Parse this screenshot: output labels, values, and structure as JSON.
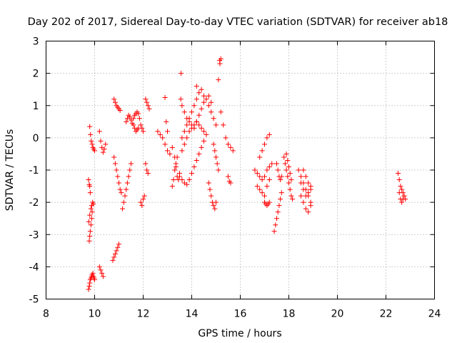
{
  "chart_data": {
    "type": "scatter",
    "title": "Day 202 of 2017, Sidereal Day-to-day VTEC variation (SDTVAR) for receiver ab18",
    "xlabel": "GPS time / hours",
    "ylabel": "SDTVAR / TECUs",
    "xlim": [
      8,
      24
    ],
    "ylim": [
      -5,
      3
    ],
    "x_ticks": [
      8,
      10,
      12,
      14,
      16,
      18,
      20,
      22,
      24
    ],
    "y_ticks": [
      -5,
      -4,
      -3,
      -2,
      -1,
      0,
      1,
      2,
      3
    ],
    "x_tick_labels": [
      "8",
      "10",
      "12",
      "14",
      "16",
      "18",
      "20",
      "22",
      "24"
    ],
    "y_tick_labels": [
      "-5",
      "-4",
      "-3",
      "-2",
      "-1",
      "0",
      "1",
      "2",
      "3"
    ],
    "grid": true,
    "marker": "+",
    "color": "#ff0000",
    "series": [
      {
        "name": "SDTVAR",
        "x": [
          9.75,
          9.78,
          9.8,
          9.82,
          9.85,
          9.88,
          9.9,
          9.93,
          9.95,
          9.98,
          10.0,
          9.78,
          9.8,
          9.82,
          9.85,
          9.88,
          9.9,
          9.76,
          9.8,
          9.85,
          9.88,
          9.92,
          9.95,
          9.75,
          9.78,
          9.8,
          9.82,
          9.8,
          9.83,
          9.86,
          9.9,
          9.93,
          9.96,
          10.0,
          10.2,
          10.25,
          10.3,
          10.35,
          10.2,
          10.25,
          10.3,
          10.35,
          10.4,
          10.45,
          10.75,
          10.8,
          10.85,
          10.9,
          10.95,
          11.0,
          10.8,
          10.85,
          10.9,
          10.95,
          11.0,
          11.05,
          10.8,
          10.85,
          10.9,
          10.95,
          11.0,
          11.05,
          11.1,
          11.15,
          11.2,
          11.25,
          11.3,
          11.35,
          11.4,
          11.45,
          11.5,
          11.3,
          11.35,
          11.4,
          11.45,
          11.5,
          11.55,
          11.6,
          11.65,
          11.7,
          11.75,
          11.8,
          11.6,
          11.65,
          11.7,
          11.75,
          11.8,
          11.85,
          11.9,
          11.95,
          12.0,
          11.9,
          11.95,
          12.0,
          12.05,
          12.1,
          12.15,
          12.2,
          12.25,
          12.1,
          12.15,
          12.2,
          12.6,
          12.7,
          12.8,
          12.9,
          13.0,
          13.1,
          12.9,
          12.95,
          13.0,
          13.2,
          13.3,
          13.35,
          13.4,
          13.45,
          13.5,
          13.2,
          13.25,
          13.3,
          13.35,
          13.4,
          13.55,
          13.6,
          13.7,
          13.8,
          13.9,
          14.0,
          14.1,
          14.2,
          14.3,
          14.4,
          14.5,
          14.6,
          14.7,
          14.8,
          14.9,
          15.0,
          13.6,
          13.7,
          13.8,
          13.9,
          14.0,
          14.1,
          14.2,
          14.3,
          14.4,
          14.5,
          13.6,
          13.7,
          13.8,
          13.9,
          14.0,
          14.1,
          14.2,
          14.3,
          14.4,
          14.5,
          14.6,
          13.5,
          13.6,
          13.7,
          13.8,
          13.9,
          14.0,
          14.1,
          14.2,
          14.3,
          14.4,
          14.5,
          13.56,
          14.2,
          14.7,
          14.8,
          15.1,
          15.15,
          15.2,
          15.16,
          14.7,
          14.75,
          14.8,
          14.85,
          14.9,
          14.95,
          15.0,
          14.9,
          14.95,
          15.0,
          15.05,
          15.1,
          15.2,
          15.3,
          15.4,
          15.5,
          15.6,
          15.7,
          15.5,
          15.55,
          15.6,
          16.6,
          16.7,
          16.8,
          16.9,
          17.0,
          17.1,
          17.2,
          17.3,
          16.7,
          16.8,
          16.9,
          17.0,
          17.1,
          17.2,
          16.8,
          16.9,
          17.0,
          17.1,
          17.2,
          17.0,
          17.05,
          17.1,
          17.15,
          17.2,
          17.4,
          17.45,
          17.5,
          17.55,
          17.6,
          17.65,
          17.7,
          17.5,
          17.55,
          17.6,
          17.65,
          17.7,
          17.8,
          17.85,
          17.9,
          17.95,
          18.0,
          18.05,
          18.1,
          18.15,
          17.9,
          17.95,
          18.0,
          18.05,
          18.1,
          18.4,
          18.5,
          18.6,
          18.7,
          18.8,
          18.9,
          18.5,
          18.6,
          18.7,
          18.8,
          18.9,
          18.5,
          18.6,
          18.7,
          18.8,
          18.9,
          18.6,
          18.7,
          18.8,
          18.9,
          22.5,
          22.55,
          22.6,
          22.65,
          22.7,
          22.75,
          22.8,
          22.55,
          22.6,
          22.65,
          22.7,
          22.75
        ],
        "y": [
          -4.7,
          -4.6,
          -4.5,
          -4.4,
          -4.35,
          -4.3,
          -4.25,
          -4.2,
          -4.3,
          -4.35,
          -4.4,
          -3.2,
          -3.05,
          -2.9,
          -2.7,
          -2.5,
          -2.3,
          -2.6,
          -2.4,
          -2.2,
          -2.1,
          -2.0,
          -2.05,
          -1.3,
          -1.45,
          -1.5,
          -1.7,
          0.35,
          0.1,
          -0.1,
          -0.2,
          -0.3,
          -0.35,
          -0.4,
          -4.0,
          -4.1,
          -4.2,
          -4.3,
          0.2,
          -0.1,
          -0.3,
          -0.45,
          -0.35,
          -0.2,
          -3.8,
          -3.7,
          -3.6,
          -3.5,
          -3.4,
          -3.3,
          1.2,
          1.1,
          1.0,
          0.95,
          0.9,
          0.85,
          -0.6,
          -0.8,
          -1.0,
          -1.2,
          -1.4,
          -1.6,
          -1.7,
          -2.2,
          -2.0,
          -1.8,
          -1.6,
          -1.4,
          -1.2,
          -1.0,
          -0.8,
          0.5,
          0.6,
          0.7,
          0.65,
          0.55,
          0.45,
          0.4,
          0.3,
          0.2,
          0.25,
          0.3,
          0.6,
          0.7,
          0.75,
          0.8,
          0.75,
          0.6,
          0.4,
          0.3,
          0.2,
          -2.0,
          -2.1,
          -1.9,
          -1.8,
          1.2,
          1.1,
          1.0,
          0.9,
          -0.8,
          -1.0,
          -1.1,
          0.2,
          0.1,
          0.0,
          -0.2,
          -0.4,
          -0.5,
          1.25,
          0.5,
          0.2,
          -0.3,
          -0.6,
          -0.9,
          -1.2,
          -1.3,
          -1.1,
          -1.5,
          -1.3,
          -1.0,
          -0.8,
          -0.6,
          1.2,
          1.0,
          0.8,
          0.6,
          0.5,
          0.4,
          0.3,
          0.5,
          0.7,
          0.9,
          1.1,
          1.2,
          1.0,
          0.8,
          0.6,
          0.4,
          0.0,
          0.2,
          0.4,
          0.6,
          0.8,
          1.0,
          1.2,
          1.4,
          1.5,
          1.3,
          -0.4,
          -0.2,
          0.0,
          0.2,
          0.3,
          0.4,
          0.5,
          0.4,
          0.3,
          0.2,
          0.1,
          -1.2,
          -1.3,
          -1.4,
          -1.45,
          -1.3,
          -1.1,
          -0.9,
          -0.7,
          -0.5,
          -0.3,
          -0.1,
          2.0,
          1.6,
          1.3,
          1.1,
          1.8,
          2.4,
          2.45,
          2.3,
          -1.4,
          -1.6,
          -1.8,
          -2.0,
          -2.1,
          -2.2,
          -2.0,
          -0.2,
          -0.4,
          -0.6,
          -0.8,
          -1.0,
          0.8,
          0.4,
          0.0,
          -0.2,
          -0.3,
          -0.4,
          -1.2,
          -1.35,
          -1.4,
          -1.0,
          -1.1,
          -1.2,
          -1.3,
          -1.2,
          -1.0,
          -0.9,
          -0.8,
          -1.5,
          -1.6,
          -1.7,
          -1.8,
          -1.5,
          -1.3,
          -0.6,
          -0.4,
          -0.2,
          0.0,
          0.1,
          -2.0,
          -2.05,
          -2.1,
          -2.05,
          -2.0,
          -2.9,
          -2.7,
          -2.5,
          -2.3,
          -2.1,
          -1.9,
          -1.7,
          -0.8,
          -1.0,
          -1.2,
          -1.3,
          -1.2,
          -0.6,
          -0.8,
          -1.0,
          -1.2,
          -1.4,
          -1.6,
          -1.8,
          -1.9,
          -0.5,
          -0.7,
          -0.9,
          -1.1,
          -1.3,
          -1.0,
          -1.2,
          -1.4,
          -1.6,
          -1.8,
          -2.0,
          -1.8,
          -2.0,
          -2.2,
          -2.3,
          -2.1,
          -1.4,
          -1.6,
          -1.8,
          -1.7,
          -1.5,
          -1.0,
          -1.2,
          -1.4,
          -1.6,
          -1.1,
          -1.3,
          -1.5,
          -1.6,
          -1.7,
          -1.8,
          -1.9,
          -1.7,
          -1.9,
          -2.0,
          -1.9,
          -1.8
        ]
      }
    ]
  }
}
